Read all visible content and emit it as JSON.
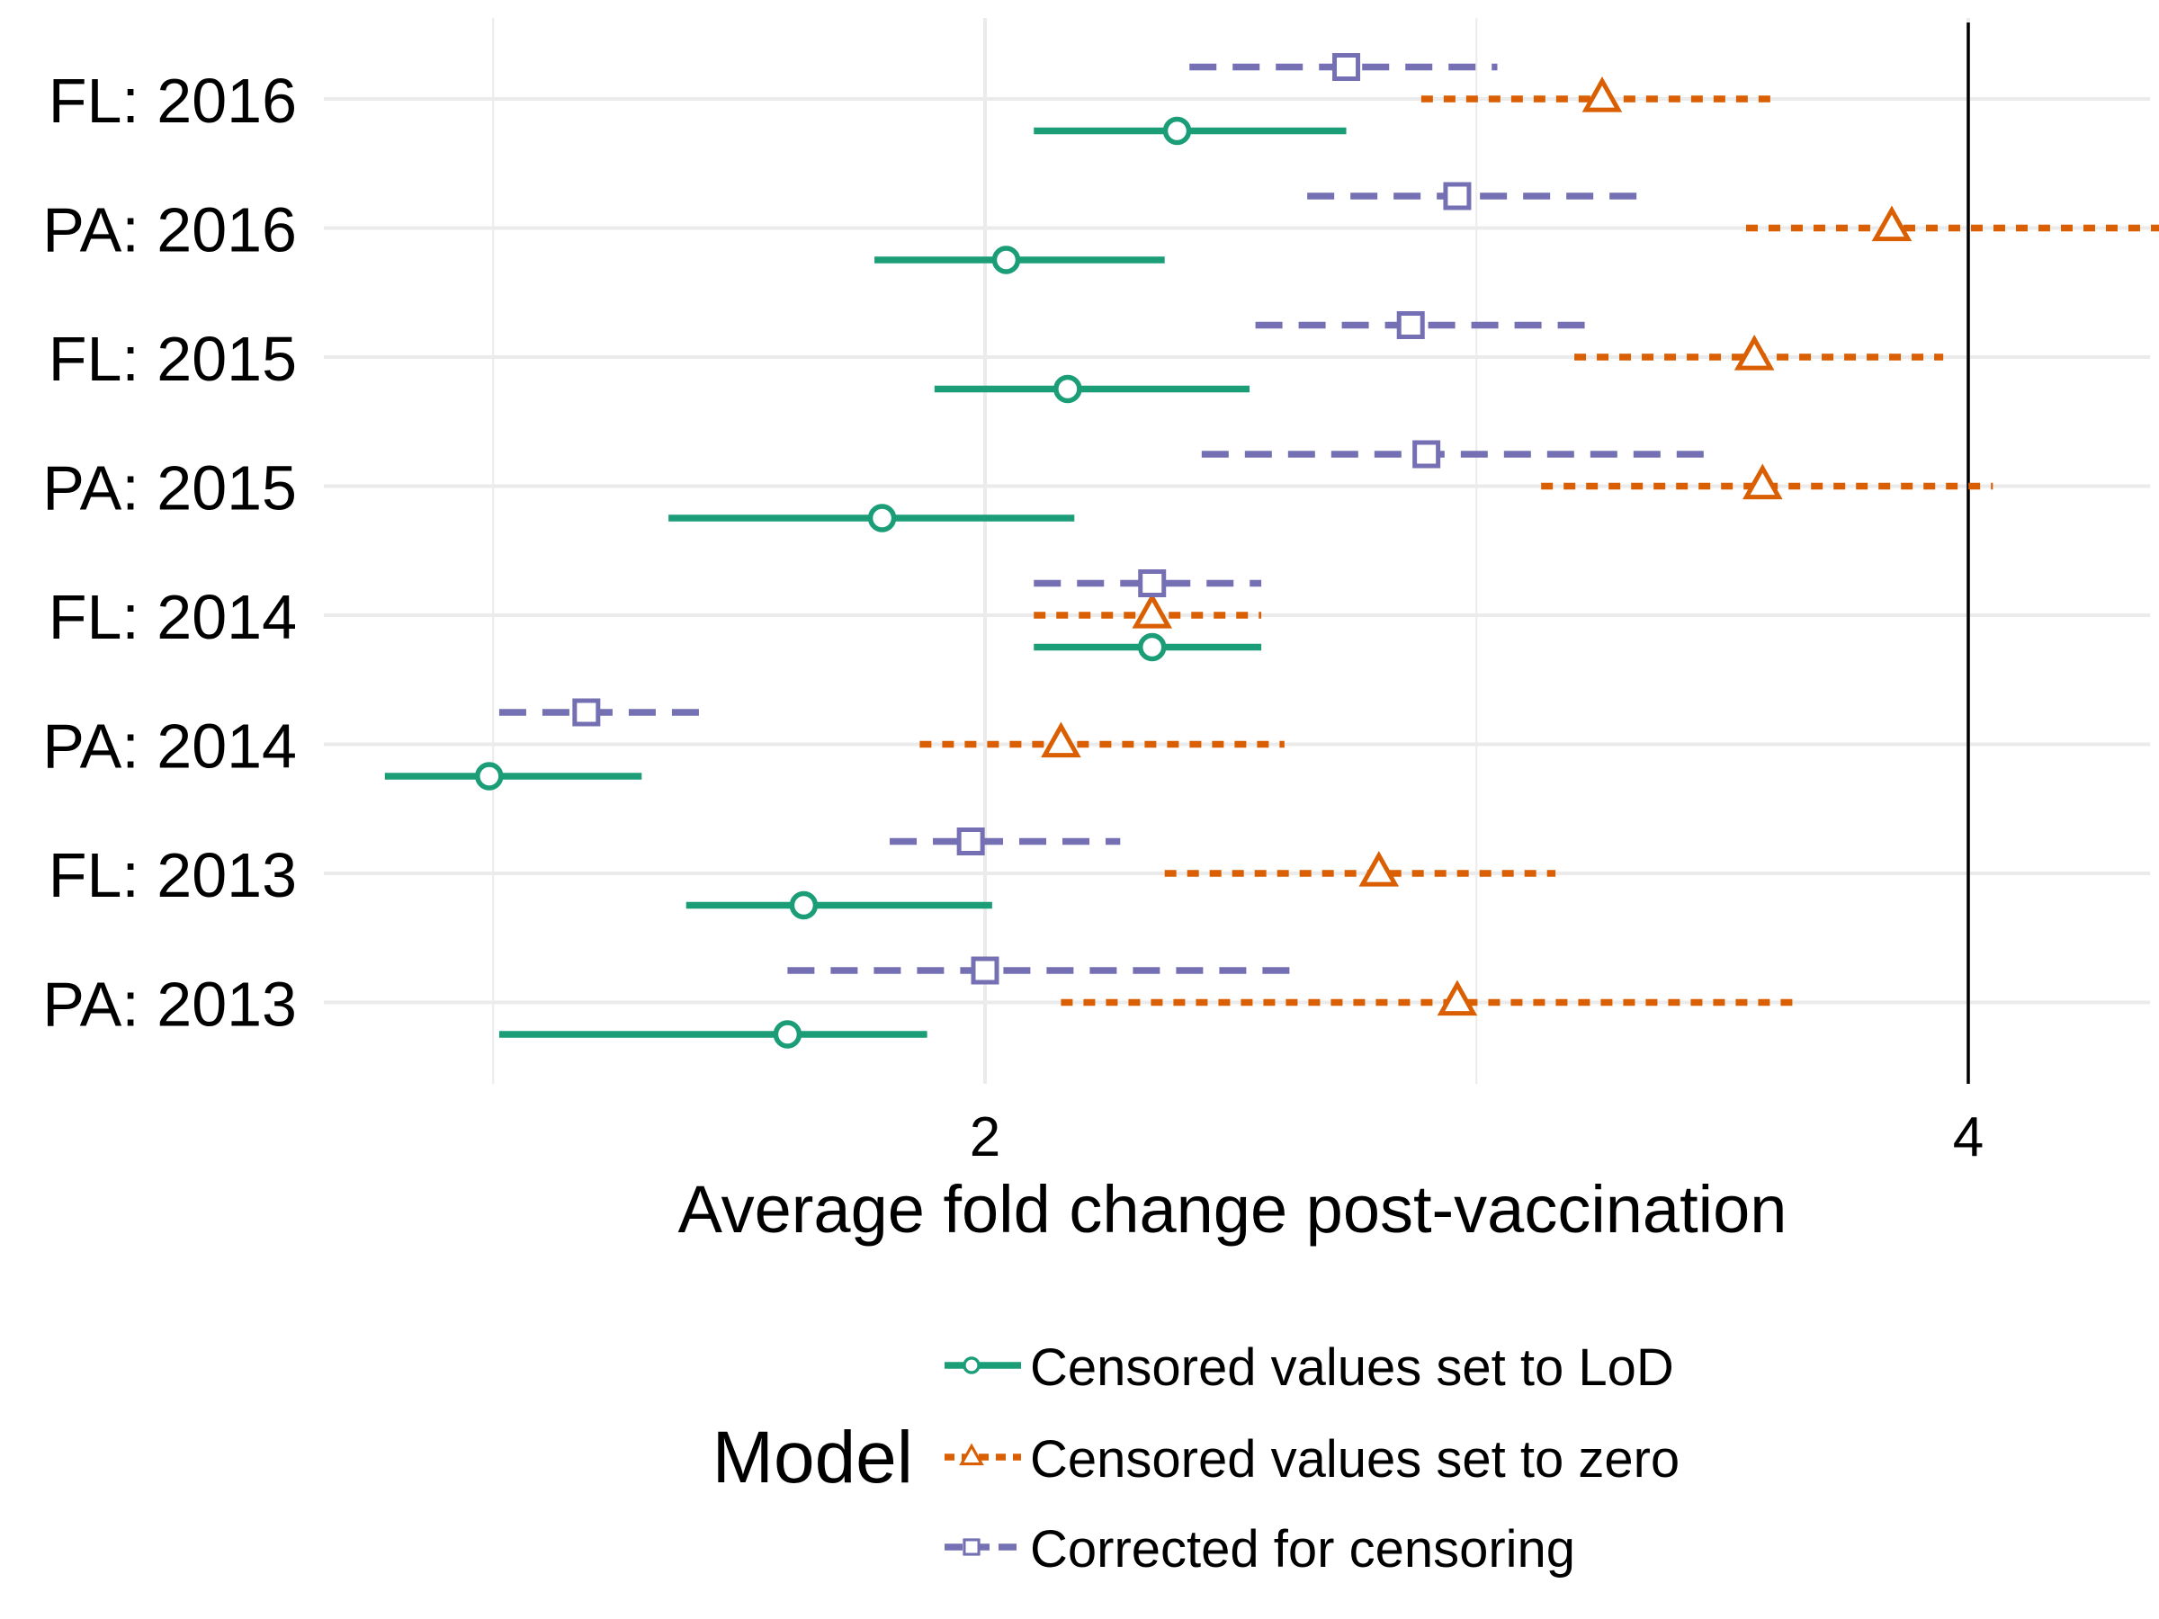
{
  "chart_data": {
    "type": "forest",
    "xlabel": "Average fold change post-vaccination",
    "x_scale": "log2",
    "xlim": [
      1.35,
      4.8
    ],
    "x_ticks": [
      2,
      4
    ],
    "x_tick_labels": [
      "2",
      "4"
    ],
    "x_minor_gridlines": [
      1.414,
      2.828
    ],
    "reference_line_x": 4,
    "grid": true,
    "categories": [
      "FL: 2016",
      "PA: 2016",
      "FL: 2015",
      "PA: 2015",
      "FL: 2014",
      "PA: 2014",
      "FL: 2013",
      "PA: 2013"
    ],
    "legend": {
      "title": "Model",
      "position": "bottom",
      "entries": [
        "Censored values set to LoD",
        "Censored values set to zero",
        "Corrected for censoring"
      ]
    },
    "series": [
      {
        "name": "Censored values set to LoD",
        "color": "#1b9e77",
        "line_style": "solid",
        "marker": "circle",
        "estimates": [
          2.29,
          2.03,
          2.12,
          1.86,
          2.25,
          1.41,
          1.76,
          1.74
        ],
        "lower": [
          2.07,
          1.85,
          1.93,
          1.6,
          2.07,
          1.31,
          1.62,
          1.42
        ],
        "upper": [
          2.58,
          2.27,
          2.41,
          2.13,
          2.43,
          1.57,
          2.01,
          1.92
        ]
      },
      {
        "name": "Censored values set to zero",
        "color": "#d95f02",
        "line_style": "dotted",
        "marker": "triangle",
        "estimates": [
          3.09,
          3.79,
          3.44,
          3.46,
          2.25,
          2.11,
          2.64,
          2.79
        ],
        "lower": [
          2.72,
          3.42,
          3.03,
          2.96,
          2.07,
          1.91,
          2.27,
          2.11
        ],
        "upper": [
          3.49,
          4.71,
          3.93,
          4.07,
          2.43,
          2.47,
          2.99,
          3.55
        ]
      },
      {
        "name": "Corrected for censoring",
        "color": "#7570b3",
        "line_style": "dashed",
        "marker": "square",
        "estimates": [
          2.58,
          2.79,
          2.7,
          2.73,
          2.25,
          1.51,
          1.98,
          2.0
        ],
        "lower": [
          2.31,
          2.51,
          2.42,
          2.33,
          2.07,
          1.42,
          1.87,
          1.74
        ],
        "upper": [
          2.87,
          3.19,
          3.06,
          3.35,
          2.43,
          1.64,
          2.2,
          2.49
        ]
      }
    ]
  }
}
